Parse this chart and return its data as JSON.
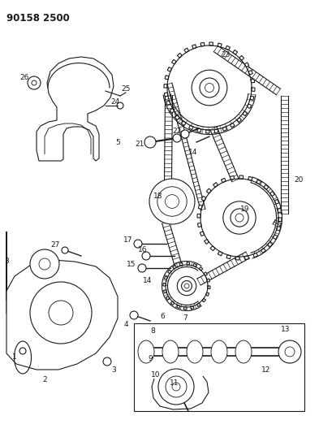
{
  "title": "90158 2500",
  "bg_color": "#ffffff",
  "line_color": "#1a1a1a",
  "fig_width": 3.93,
  "fig_height": 5.33,
  "dpi": 100
}
